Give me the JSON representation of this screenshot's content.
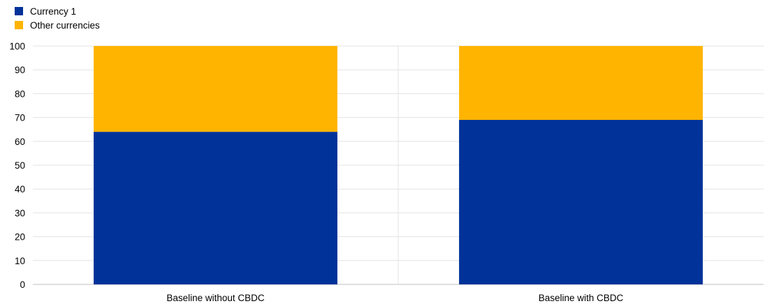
{
  "chart_data": {
    "type": "bar",
    "stacked": true,
    "categories": [
      "Baseline without CBDC",
      "Baseline with CBDC"
    ],
    "series": [
      {
        "name": "Currency 1",
        "color": "#003299",
        "values": [
          64,
          69
        ]
      },
      {
        "name": "Other currencies",
        "color": "#FFB400",
        "values": [
          36,
          31
        ]
      }
    ],
    "ylim": [
      0,
      100
    ],
    "yticks": [
      0,
      10,
      20,
      30,
      40,
      50,
      60,
      70,
      80,
      90,
      100
    ],
    "grid": true,
    "legend_position": "top-left"
  }
}
